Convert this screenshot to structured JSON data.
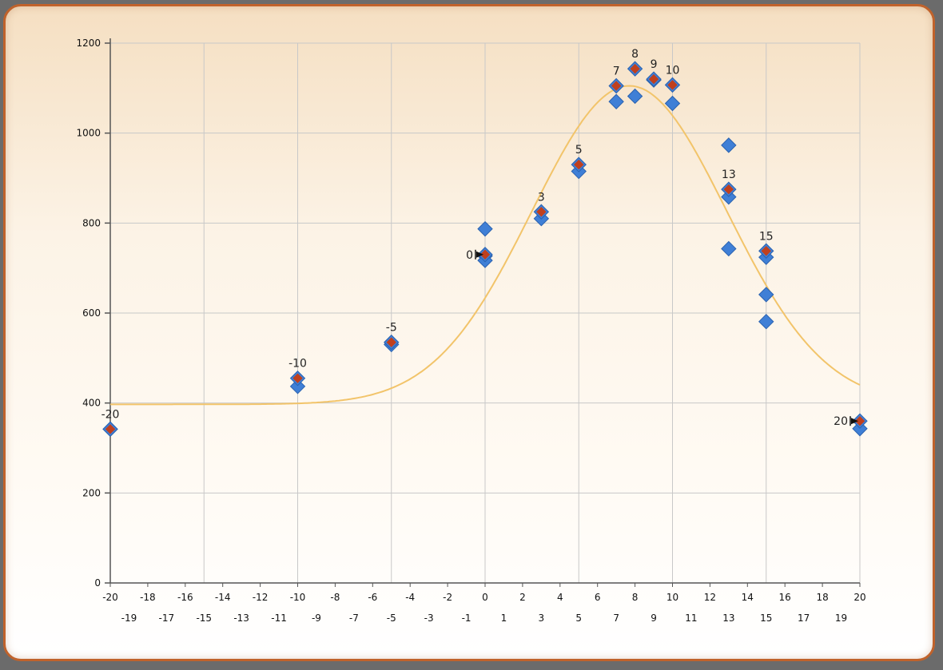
{
  "chart_data": {
    "type": "scatter",
    "title": "",
    "xlabel": "",
    "ylabel": "",
    "xlim": [
      -20,
      20
    ],
    "ylim": [
      0,
      1200
    ],
    "grid": true,
    "y_ticks": [
      0,
      200,
      400,
      600,
      800,
      1000,
      1200
    ],
    "x_ticks_row1": [
      -20,
      -18,
      -16,
      -14,
      -12,
      -10,
      -8,
      -6,
      -4,
      -2,
      0,
      2,
      4,
      6,
      8,
      10,
      12,
      14,
      16,
      18,
      20
    ],
    "x_ticks_row2": [
      -19,
      -17,
      -15,
      -13,
      -11,
      -9,
      -7,
      -5,
      -3,
      -1,
      1,
      3,
      5,
      7,
      9,
      11,
      13,
      15,
      17,
      19
    ],
    "x_gridlines": [
      -20,
      -15,
      -10,
      -5,
      0,
      5,
      10,
      15,
      20
    ],
    "colors": {
      "raw_marker": "#3f7fd6",
      "raw_marker_edge": "#2a62b0",
      "selected_marker": "#c0401e",
      "fit_curve": "#f2c46a",
      "grid": "#c8c8c8",
      "axis": "#555555"
    },
    "series": [
      {
        "role": "raw",
        "points": [
          [
            -20,
            342
          ],
          [
            -10,
            437
          ],
          [
            -5,
            530
          ],
          [
            0,
            787
          ],
          [
            0,
            727
          ],
          [
            0,
            717
          ],
          [
            3,
            810
          ],
          [
            5,
            915
          ],
          [
            7,
            1070
          ],
          [
            8,
            1082
          ],
          [
            9,
            1118
          ],
          [
            10,
            1066
          ],
          [
            13,
            973
          ],
          [
            13,
            858
          ],
          [
            13,
            743
          ],
          [
            15,
            724
          ],
          [
            15,
            641
          ],
          [
            15,
            581
          ],
          [
            20,
            343
          ]
        ]
      },
      {
        "role": "selected",
        "points": [
          [
            -20,
            342
          ],
          [
            -10,
            455
          ],
          [
            -5,
            535
          ],
          [
            0,
            730
          ],
          [
            3,
            825
          ],
          [
            5,
            930
          ],
          [
            7,
            1105
          ],
          [
            8,
            1143
          ],
          [
            9,
            1120
          ],
          [
            10,
            1107
          ],
          [
            13,
            875
          ],
          [
            15,
            738
          ],
          [
            20,
            360
          ]
        ],
        "labels": [
          "-20",
          "-10",
          "-5",
          "0",
          "3",
          "5",
          "7",
          "8",
          "9",
          "10",
          "13",
          "15",
          "20"
        ],
        "arrow_labels": [
          "0",
          "20"
        ]
      },
      {
        "role": "fit",
        "type": "line",
        "baseline": 397,
        "amplitude": 708,
        "center": 7.7,
        "width": 5.2
      }
    ]
  }
}
